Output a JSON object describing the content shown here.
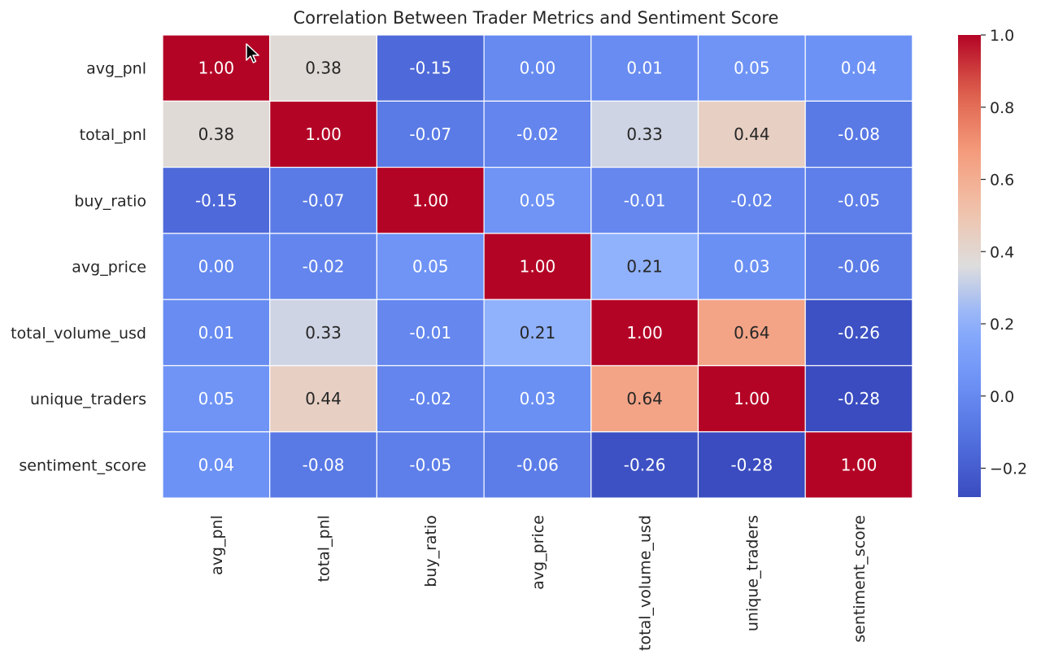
{
  "chart_data": {
    "type": "heatmap",
    "title": "Correlation Between Trader Metrics and Sentiment Score",
    "row_labels": [
      "avg_pnl",
      "total_pnl",
      "buy_ratio",
      "avg_price",
      "total_volume_usd",
      "unique_traders",
      "sentiment_score"
    ],
    "col_labels": [
      "avg_pnl",
      "total_pnl",
      "buy_ratio",
      "avg_price",
      "total_volume_usd",
      "unique_traders",
      "sentiment_score"
    ],
    "values": [
      [
        1.0,
        0.38,
        -0.15,
        0.0,
        0.01,
        0.05,
        0.04
      ],
      [
        0.38,
        1.0,
        -0.07,
        -0.02,
        0.33,
        0.44,
        -0.08
      ],
      [
        -0.15,
        -0.07,
        1.0,
        0.05,
        -0.01,
        -0.02,
        -0.05
      ],
      [
        0.0,
        -0.02,
        0.05,
        1.0,
        0.21,
        0.03,
        -0.06
      ],
      [
        0.01,
        0.33,
        -0.01,
        0.21,
        1.0,
        0.64,
        -0.26
      ],
      [
        0.05,
        0.44,
        -0.02,
        0.03,
        0.64,
        1.0,
        -0.28
      ],
      [
        0.04,
        -0.08,
        -0.05,
        -0.06,
        -0.26,
        -0.28,
        1.0
      ]
    ],
    "colormap": "coolwarm",
    "value_range": [
      -0.28,
      1.0
    ],
    "colorbar_ticks": [
      "1.0",
      "0.8",
      "0.6",
      "0.4",
      "0.2",
      "0.0",
      "−0.2"
    ],
    "colorbar_tick_values": [
      1.0,
      0.8,
      0.6,
      0.4,
      0.2,
      0.0,
      -0.2
    ],
    "annotated": true,
    "value_format": "0.00"
  }
}
